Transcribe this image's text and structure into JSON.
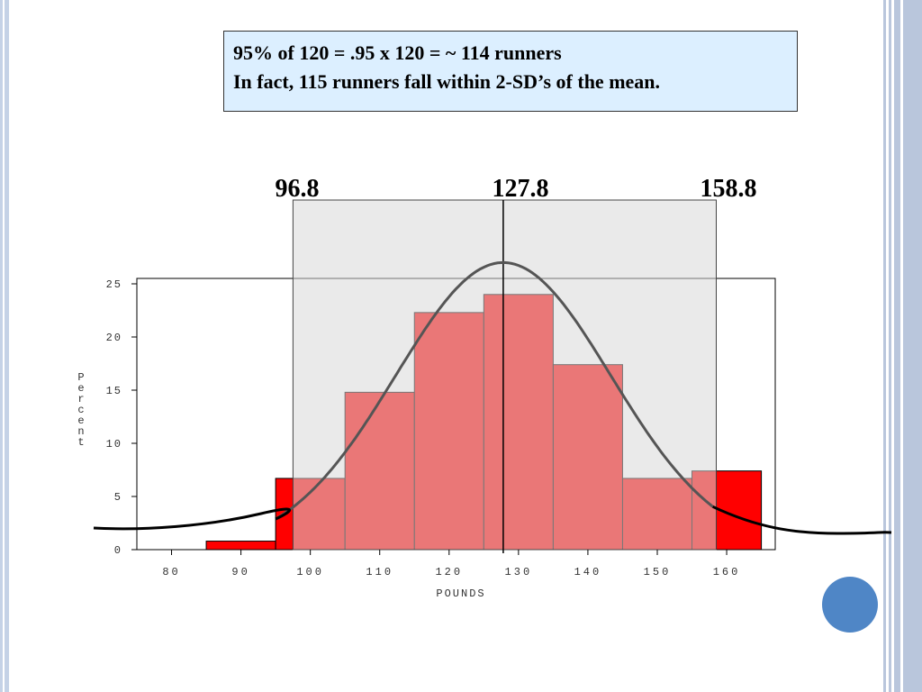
{
  "callout": {
    "line1": "95%  of  120 = .95 x 120 = ~ 114 runners",
    "line2": "In fact, 115 runners fall within 2-SD’s of the mean."
  },
  "sd_labels": [
    "96.8",
    "127.8",
    "158.8"
  ],
  "chart_data": {
    "type": "bar",
    "title": "",
    "xlabel": "POUNDS",
    "ylabel": "Percent",
    "xlim": [
      75,
      167
    ],
    "ylim": [
      0,
      25
    ],
    "x_ticks": [
      80,
      90,
      100,
      110,
      120,
      130,
      140,
      150,
      160
    ],
    "y_ticks": [
      0,
      5,
      10,
      15,
      20,
      25
    ],
    "bins": [
      {
        "start": 85,
        "end": 95,
        "value": 0.8
      },
      {
        "start": 95,
        "end": 105,
        "value": 6.7
      },
      {
        "start": 105,
        "end": 115,
        "value": 14.8
      },
      {
        "start": 115,
        "end": 125,
        "value": 22.3
      },
      {
        "start": 125,
        "end": 135,
        "value": 24.0
      },
      {
        "start": 135,
        "end": 145,
        "value": 17.4
      },
      {
        "start": 145,
        "end": 155,
        "value": 6.7
      },
      {
        "start": 155,
        "end": 165,
        "value": 7.4
      }
    ],
    "shaded_range": [
      97.5,
      158.5
    ],
    "mean": 127.8,
    "sd": 15.5,
    "normal_curve_peak": 27,
    "colors": {
      "bar_outside": "#ff0000",
      "bar_inside": "#e06060",
      "shade": "#e0e0e0",
      "curve": "#555555"
    }
  }
}
